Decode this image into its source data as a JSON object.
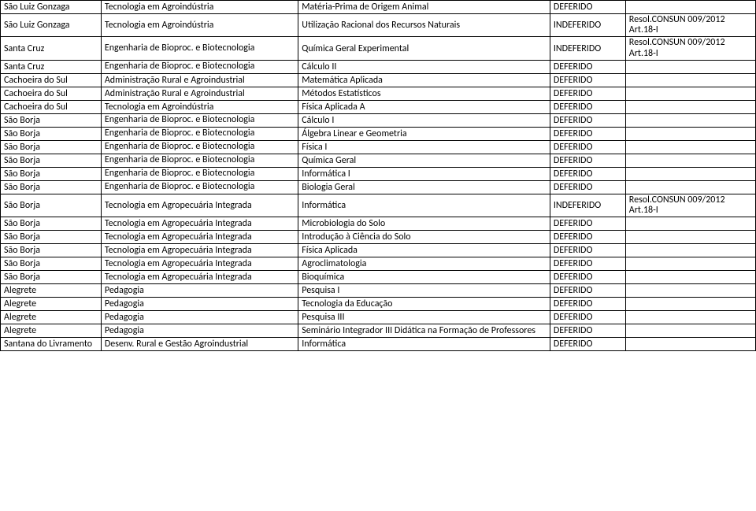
{
  "rows": [
    {
      "loc": "São Luiz Gonzaga",
      "course": "Tecnologia em Agroindústria",
      "subj": "Matéria-Prima de Origem Animal",
      "status": "DEFERIDO",
      "note": "",
      "wrapLoc": false,
      "wrapCourse": false,
      "wrapSubj": false,
      "wrapNote": false
    },
    {
      "loc": "São Luiz Gonzaga",
      "course": "Tecnologia em Agroindústria",
      "subj": "Utilização Racional dos Recursos Naturais",
      "status": "INDEFERIDO",
      "note": "Resol.CONSUN 009/2012 Art.18-I",
      "wrapLoc": false,
      "wrapCourse": false,
      "wrapSubj": false,
      "wrapNote": true
    },
    {
      "loc": "Santa Cruz",
      "course": "Engenharia de Bioproc. e Biotecnologia",
      "subj": "Química Geral Experimental",
      "status": "INDEFERIDO",
      "note": "Resol.CONSUN 009/2012 Art.18-I",
      "wrapLoc": false,
      "wrapCourse": true,
      "wrapSubj": false,
      "wrapNote": true
    },
    {
      "loc": "Santa Cruz",
      "course": "Engenharia de Bioproc. e Biotecnologia",
      "subj": "Cálculo II",
      "status": "DEFERIDO",
      "note": "",
      "wrapLoc": false,
      "wrapCourse": true,
      "wrapSubj": false,
      "wrapNote": false
    },
    {
      "loc": "Cachoeira do Sul",
      "course": "Administração Rural e Agroindustrial",
      "subj": "Matemática Aplicada",
      "status": "DEFERIDO",
      "note": "",
      "wrapLoc": false,
      "wrapCourse": false,
      "wrapSubj": false,
      "wrapNote": false
    },
    {
      "loc": "Cachoeira do Sul",
      "course": "Administração Rural e Agroindustrial",
      "subj": "Métodos Estatísticos",
      "status": "DEFERIDO",
      "note": "",
      "wrapLoc": false,
      "wrapCourse": false,
      "wrapSubj": false,
      "wrapNote": false
    },
    {
      "loc": "Cachoeira do Sul",
      "course": "Tecnologia em Agroindústria",
      "subj": "Física Aplicada A",
      "status": "DEFERIDO",
      "note": "",
      "wrapLoc": false,
      "wrapCourse": false,
      "wrapSubj": false,
      "wrapNote": false
    },
    {
      "loc": "São Borja",
      "course": "Engenharia de Bioproc. e Biotecnologia",
      "subj": "Cálculo I",
      "status": "DEFERIDO",
      "note": "",
      "wrapLoc": false,
      "wrapCourse": true,
      "wrapSubj": false,
      "wrapNote": false
    },
    {
      "loc": "São Borja",
      "course": "Engenharia de Bioproc. e Biotecnologia",
      "subj": "Álgebra Linear e Geometria",
      "status": "DEFERIDO",
      "note": "",
      "wrapLoc": false,
      "wrapCourse": true,
      "wrapSubj": false,
      "wrapNote": false
    },
    {
      "loc": "São Borja",
      "course": "Engenharia de Bioproc. e Biotecnologia",
      "subj": "Física I",
      "status": "DEFERIDO",
      "note": "",
      "wrapLoc": false,
      "wrapCourse": true,
      "wrapSubj": false,
      "wrapNote": false
    },
    {
      "loc": "São Borja",
      "course": "Engenharia de Bioproc. e Biotecnologia",
      "subj": "Química Geral",
      "status": "DEFERIDO",
      "note": "",
      "wrapLoc": false,
      "wrapCourse": true,
      "wrapSubj": false,
      "wrapNote": false
    },
    {
      "loc": "São Borja",
      "course": "Engenharia de Bioproc. e Biotecnologia",
      "subj": "Informática I",
      "status": "DEFERIDO",
      "note": "",
      "wrapLoc": false,
      "wrapCourse": true,
      "wrapSubj": false,
      "wrapNote": false
    },
    {
      "loc": "São Borja",
      "course": "Engenharia de Bioproc. e Biotecnologia",
      "subj": "Biologia Geral",
      "status": "DEFERIDO",
      "note": "",
      "wrapLoc": false,
      "wrapCourse": true,
      "wrapSubj": false,
      "wrapNote": false
    },
    {
      "loc": "São Borja",
      "course": "Tecnologia em Agropecuária Integrada",
      "subj": "Informática",
      "status": "INDEFERIDO",
      "note": "Resol.CONSUN 009/2012 Art.18-I",
      "wrapLoc": false,
      "wrapCourse": false,
      "wrapSubj": false,
      "wrapNote": true
    },
    {
      "loc": "São Borja",
      "course": "Tecnologia em Agropecuária Integrada",
      "subj": "Microbiologia do Solo",
      "status": "DEFERIDO",
      "note": "",
      "wrapLoc": false,
      "wrapCourse": false,
      "wrapSubj": false,
      "wrapNote": false
    },
    {
      "loc": "São Borja",
      "course": "Tecnologia em Agropecuária Integrada",
      "subj": "Introdução à Ciência do Solo",
      "status": "DEFERIDO",
      "note": "",
      "wrapLoc": false,
      "wrapCourse": false,
      "wrapSubj": false,
      "wrapNote": false
    },
    {
      "loc": "São Borja",
      "course": "Tecnologia em Agropecuária Integrada",
      "subj": "Física Aplicada",
      "status": "DEFERIDO",
      "note": "",
      "wrapLoc": false,
      "wrapCourse": false,
      "wrapSubj": false,
      "wrapNote": false
    },
    {
      "loc": "São Borja",
      "course": "Tecnologia em Agropecuária Integrada",
      "subj": "Agroclimatologia",
      "status": "DEFERIDO",
      "note": "",
      "wrapLoc": false,
      "wrapCourse": false,
      "wrapSubj": false,
      "wrapNote": false
    },
    {
      "loc": "São Borja",
      "course": "Tecnologia em Agropecuária Integrada",
      "subj": "Bioquímica",
      "status": "DEFERIDO",
      "note": "",
      "wrapLoc": false,
      "wrapCourse": false,
      "wrapSubj": false,
      "wrapNote": false
    },
    {
      "loc": "Alegrete",
      "course": "Pedagogia",
      "subj": "Pesquisa I",
      "status": "DEFERIDO",
      "note": "",
      "wrapLoc": false,
      "wrapCourse": false,
      "wrapSubj": false,
      "wrapNote": false
    },
    {
      "loc": "Alegrete",
      "course": "Pedagogia",
      "subj": "Tecnologia da Educação",
      "status": "DEFERIDO",
      "note": "",
      "wrapLoc": false,
      "wrapCourse": false,
      "wrapSubj": false,
      "wrapNote": false
    },
    {
      "loc": "Alegrete",
      "course": "Pedagogia",
      "subj": "Pesquisa III",
      "status": "DEFERIDO",
      "note": "",
      "wrapLoc": false,
      "wrapCourse": false,
      "wrapSubj": false,
      "wrapNote": false
    },
    {
      "loc": "Alegrete",
      "course": "Pedagogia",
      "subj": "Seminário Integrador III Didática na Formação de Professores",
      "status": "DEFERIDO",
      "note": "",
      "wrapLoc": false,
      "wrapCourse": false,
      "wrapSubj": true,
      "wrapNote": false
    },
    {
      "loc": "Santana do Livramento",
      "course": "Desenv. Rural e Gestão Agroindustrial",
      "subj": "Informática",
      "status": "DEFERIDO",
      "note": "",
      "wrapLoc": true,
      "wrapCourse": false,
      "wrapSubj": false,
      "wrapNote": false
    }
  ]
}
